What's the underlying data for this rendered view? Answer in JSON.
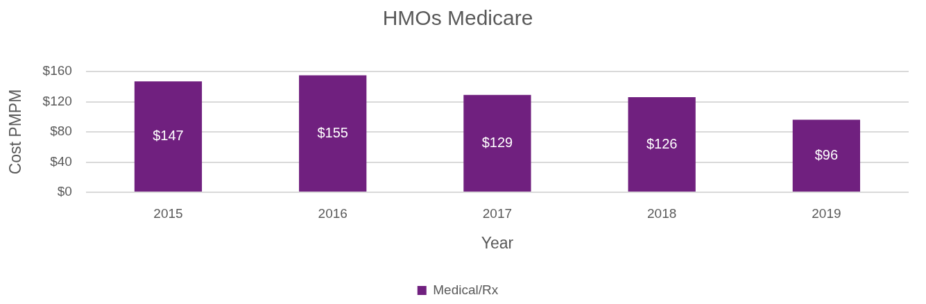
{
  "chart_data": {
    "type": "bar",
    "title": "HMOs Medicare",
    "xlabel": "Year",
    "ylabel": "Cost PMPM",
    "categories": [
      "2015",
      "2016",
      "2017",
      "2018",
      "2019"
    ],
    "series": [
      {
        "name": "Medical/Rx",
        "color": "#70207f",
        "values": [
          147,
          155,
          129,
          126,
          96
        ],
        "value_labels": [
          "$147",
          "$155",
          "$129",
          "$126",
          "$96"
        ]
      }
    ],
    "ylim": [
      0,
      160
    ],
    "yticks": [
      {
        "value": 0,
        "label": "$0"
      },
      {
        "value": 40,
        "label": "$40"
      },
      {
        "value": 80,
        "label": "$80"
      },
      {
        "value": 120,
        "label": "$120"
      },
      {
        "value": 160,
        "label": "$160"
      }
    ],
    "grid": "y",
    "legend": "bottom"
  }
}
